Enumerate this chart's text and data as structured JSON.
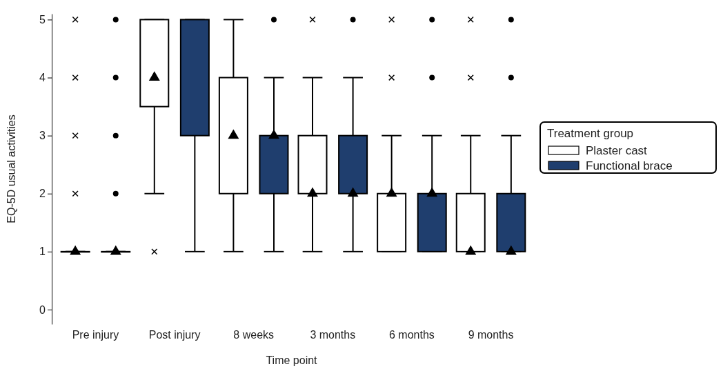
{
  "chart_data": {
    "type": "box",
    "xlabel": "Time point",
    "ylabel": "EQ-5D usual activities",
    "legend_title": "Treatment group",
    "legend": "right",
    "ylim": [
      -0.25,
      5.1
    ],
    "yticks": [
      0,
      1,
      2,
      3,
      4,
      5
    ],
    "categories": [
      "Pre injury",
      "Post injury",
      "8 weeks",
      "3 months",
      "6 months",
      "9 months"
    ],
    "series": [
      {
        "name": "Plaster cast",
        "color": "#ffffff",
        "marker": "cross",
        "boxes": [
          {
            "low": 1,
            "q1": 1,
            "median": 1,
            "q3": 1,
            "high": 1,
            "mean": 1,
            "outliers": [
              2,
              3,
              4,
              5
            ]
          },
          {
            "low": 2,
            "q1": 3.5,
            "median": 4,
            "q3": 5,
            "high": 5,
            "outliers": [
              1
            ]
          },
          {
            "low": 1,
            "q1": 2,
            "median": 3,
            "q3": 4,
            "high": 5
          },
          {
            "low": 1,
            "q1": 2,
            "median": 2,
            "q3": 3,
            "high": 4,
            "mean": 2,
            "outliers": [
              5
            ]
          },
          {
            "low": 1,
            "q1": 1,
            "median": 2,
            "q3": 2,
            "high": 3,
            "mean": 2,
            "outliers": [
              4,
              5
            ]
          },
          {
            "low": 1,
            "q1": 1,
            "median": 1,
            "q3": 2,
            "high": 3,
            "mean": 1,
            "outliers": [
              4,
              5
            ]
          }
        ]
      },
      {
        "name": "Functional brace",
        "color": "#1f3e6e",
        "marker": "circle",
        "boxes": [
          {
            "low": 1,
            "q1": 1,
            "median": 1,
            "q3": 1,
            "high": 1,
            "mean": 1,
            "outliers": [
              2,
              3,
              4,
              5
            ]
          },
          {
            "low": 1,
            "q1": 3,
            "median": null,
            "q3": 5,
            "high": 5
          },
          {
            "low": 1,
            "q1": 2,
            "median": 3,
            "q3": 3,
            "high": 4,
            "mean": 3,
            "outliers": [
              5
            ]
          },
          {
            "low": 1,
            "q1": 2,
            "median": 2,
            "q3": 3,
            "high": 4,
            "mean": 2,
            "outliers": [
              5
            ]
          },
          {
            "low": 1,
            "q1": 1,
            "median": 2,
            "q3": 2,
            "high": 3,
            "mean": 2,
            "outliers": [
              4,
              5
            ]
          },
          {
            "low": 1,
            "q1": 1,
            "median": 1,
            "q3": 2,
            "high": 3,
            "mean": 1,
            "outliers": [
              4,
              5
            ]
          }
        ]
      }
    ]
  }
}
